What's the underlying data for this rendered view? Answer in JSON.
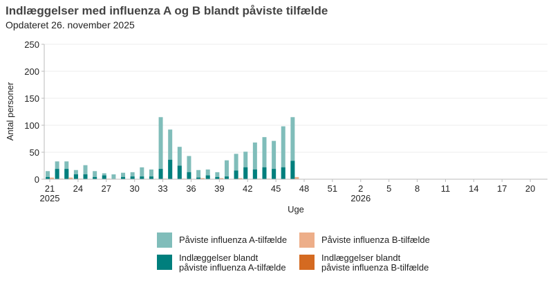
{
  "header": {
    "title": "Indlæggelser med influenza A og B blandt påviste tilfælde",
    "subtitle": "Opdateret 26. november 2025"
  },
  "colors": {
    "a_detected": "#80bdba",
    "a_admitted": "#007f7d",
    "b_detected": "#edae89",
    "b_admitted": "#d46a21",
    "grid": "#ececec",
    "axis": "#bbbbbb"
  },
  "legend": {
    "items": [
      {
        "label": "Påviste influenza A-tilfælde",
        "color": "#80bdba"
      },
      {
        "label": "Påviste influenza B-tilfælde",
        "color": "#edae89"
      },
      {
        "label": "Indlæggelser blandt\npåviste influenza A-tilfælde",
        "color": "#007f7d"
      },
      {
        "label": "Indlæggelser blandt\npåviste influenza B-tilfælde",
        "color": "#d46a21"
      }
    ]
  },
  "chart_data": {
    "type": "bar",
    "title": "Indlæggelser med influenza A og B blandt påviste tilfælde",
    "subtitle": "Opdateret 26. november 2025",
    "xlabel": "Uge",
    "ylabel": "Antal personer",
    "ylim": [
      0,
      250
    ],
    "yticks": [
      0,
      50,
      100,
      150,
      200,
      250
    ],
    "grid": true,
    "legend_position": "bottom",
    "xticks": [
      {
        "label": "21",
        "sub": "2025",
        "week_index": 0
      },
      {
        "label": "24",
        "week_index": 3
      },
      {
        "label": "27",
        "week_index": 6
      },
      {
        "label": "30",
        "week_index": 9
      },
      {
        "label": "33",
        "week_index": 12
      },
      {
        "label": "36",
        "week_index": 15
      },
      {
        "label": "39",
        "week_index": 18
      },
      {
        "label": "42",
        "week_index": 21
      },
      {
        "label": "45",
        "week_index": 24
      },
      {
        "label": "48",
        "week_index": 27
      },
      {
        "label": "51",
        "week_index": 30
      },
      {
        "label": "2",
        "sub": "2026",
        "week_index": 33
      },
      {
        "label": "5",
        "week_index": 36
      },
      {
        "label": "8",
        "week_index": 39
      },
      {
        "label": "11",
        "week_index": 42
      },
      {
        "label": "14",
        "week_index": 45
      },
      {
        "label": "17",
        "week_index": 48
      },
      {
        "label": "20",
        "week_index": 51
      }
    ],
    "categories": [
      "21",
      "22",
      "23",
      "24",
      "25",
      "26",
      "27",
      "28",
      "29",
      "30",
      "31",
      "32",
      "33",
      "34",
      "35",
      "36",
      "37",
      "38",
      "39",
      "40",
      "41",
      "42",
      "43",
      "44",
      "45",
      "46",
      "47"
    ],
    "series": [
      {
        "name": "Påviste influenza A-tilfælde",
        "values": [
          15,
          33,
          33,
          17,
          26,
          15,
          11,
          9,
          12,
          13,
          22,
          18,
          115,
          92,
          60,
          43,
          17,
          18,
          13,
          35,
          47,
          51,
          68,
          78,
          71,
          98,
          115
        ]
      },
      {
        "name": "Indlæggelser blandt påviste influenza A-tilfælde",
        "values": [
          4,
          19,
          19,
          9,
          9,
          4,
          7,
          0,
          4,
          5,
          5,
          5,
          19,
          36,
          25,
          13,
          3,
          7,
          4,
          5,
          16,
          22,
          18,
          22,
          19,
          22,
          34
        ]
      },
      {
        "name": "Påviste influenza B-tilfælde",
        "values": [
          3,
          1,
          3,
          1,
          0,
          0,
          1,
          0,
          0,
          0,
          0,
          0,
          1,
          0,
          1,
          0,
          2,
          0,
          2,
          0,
          2,
          0,
          1,
          1,
          0,
          0,
          4
        ]
      },
      {
        "name": "Indlæggelser blandt påviste influenza B-tilfælde",
        "values": [
          0,
          0,
          0,
          0,
          0,
          0,
          0,
          0,
          0,
          0,
          0,
          0,
          0,
          0,
          0,
          0,
          0,
          0,
          0,
          0,
          0,
          0,
          0,
          0,
          0,
          0,
          0
        ]
      }
    ]
  }
}
